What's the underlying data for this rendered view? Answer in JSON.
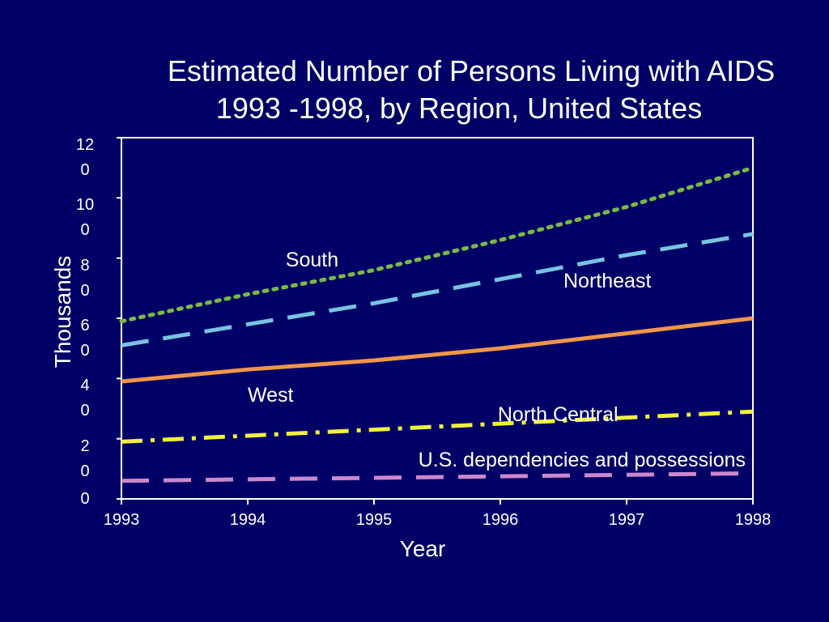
{
  "chart_data": {
    "type": "line",
    "title_lines": [
      "Estimated Number of Persons Living with AIDS",
      "1993 -1998, by Region, United States"
    ],
    "xlabel": "Year",
    "ylabel": "Thousands",
    "x": [
      1993,
      1994,
      1995,
      1996,
      1997,
      1998
    ],
    "x_tick_labels": [
      "1993",
      "1994",
      "1995",
      "1996",
      "1997",
      "1998"
    ],
    "ylim": [
      0,
      120
    ],
    "y_ticks": [
      0,
      20,
      40,
      60,
      80,
      100,
      120
    ],
    "y_tick_labels": [
      "0",
      "2\n0",
      "4\n0",
      "6\n0",
      "8\n0",
      "10\n0",
      "12\n0"
    ],
    "grid": false,
    "legend": "none",
    "series": [
      {
        "name": "South",
        "values": [
          59,
          68,
          76,
          86,
          97,
          110
        ],
        "color": "#77bb44",
        "style": "dotted"
      },
      {
        "name": "Northeast",
        "values": [
          51,
          58,
          65,
          73,
          81,
          88
        ],
        "color": "#77c4e0",
        "style": "dashed"
      },
      {
        "name": "West",
        "values": [
          39,
          43,
          46,
          50,
          55,
          60
        ],
        "color": "#f0954a",
        "style": "solid"
      },
      {
        "name": "North Central",
        "values": [
          19,
          21,
          23,
          25,
          27,
          29
        ],
        "color": "#f0f040",
        "style": "dash-dot"
      },
      {
        "name": "U.S. dependencies and possessions",
        "values": [
          6,
          6.5,
          7,
          7.5,
          8,
          8.5
        ],
        "color": "#cc88cc",
        "style": "dashed"
      }
    ]
  },
  "colors": {
    "background": "#000066",
    "text": "#ffffff",
    "axis": "#ffffff"
  }
}
